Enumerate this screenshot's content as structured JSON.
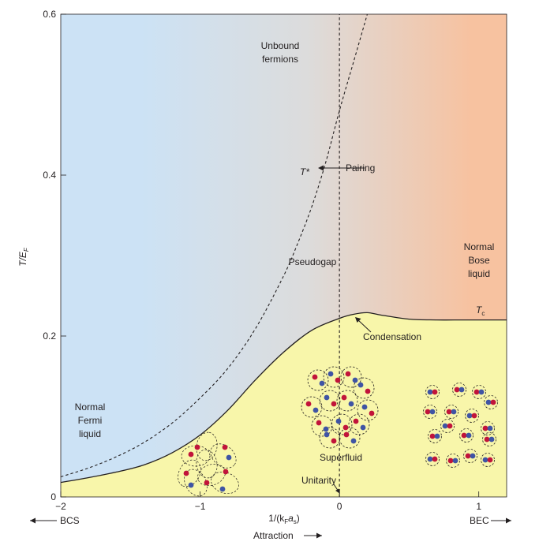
{
  "chart_data": {
    "type": "line",
    "title": "",
    "xlabel": "1/(k",
    "xlabel_sub1": "F",
    "xlabel_mid": "a",
    "xlabel_sub2": "s",
    "xlabel_end": ")",
    "ylabel": "T/E",
    "ylabel_sub": "F",
    "xlim": [
      -2,
      1.2
    ],
    "ylim": [
      0,
      0.6
    ],
    "x_ticks": [
      {
        "value": -2,
        "label": "−2"
      },
      {
        "value": -1,
        "label": "−1"
      },
      {
        "value": 0,
        "label": "0"
      },
      {
        "value": 1,
        "label": "1"
      }
    ],
    "y_ticks": [
      {
        "value": 0,
        "label": "0"
      },
      {
        "value": 0.2,
        "label": "0.2"
      },
      {
        "value": 0.4,
        "label": "0.4"
      },
      {
        "value": 0.6,
        "label": "0.6"
      }
    ],
    "grid": false,
    "series": [
      {
        "name": "T",
        "subscript": "c",
        "style": "solid",
        "x": [
          -2.0,
          -1.8,
          -1.6,
          -1.4,
          -1.2,
          -1.0,
          -0.8,
          -0.6,
          -0.4,
          -0.2,
          0.0,
          0.1,
          0.2,
          0.3,
          0.5,
          0.7,
          0.9,
          1.2
        ],
        "y": [
          0.018,
          0.024,
          0.031,
          0.04,
          0.055,
          0.077,
          0.108,
          0.146,
          0.18,
          0.207,
          0.222,
          0.227,
          0.229,
          0.226,
          0.221,
          0.22,
          0.22,
          0.22
        ]
      },
      {
        "name": "T*",
        "style": "dashed",
        "x": [
          -2.0,
          -1.8,
          -1.6,
          -1.4,
          -1.2,
          -1.0,
          -0.8,
          -0.6,
          -0.4,
          -0.3,
          -0.2,
          -0.1,
          0.0,
          0.1,
          0.2
        ],
        "y": [
          0.025,
          0.036,
          0.05,
          0.068,
          0.092,
          0.123,
          0.16,
          0.21,
          0.275,
          0.315,
          0.36,
          0.415,
          0.48,
          0.54,
          0.6
        ]
      },
      {
        "name": "Unitarity",
        "style": "dashed",
        "x": [
          0,
          0
        ],
        "y": [
          0,
          0.6
        ]
      }
    ],
    "annotations": [
      {
        "text": "Unbound",
        "x": -0.5,
        "y": 0.55
      },
      {
        "text": "fermions",
        "x": -0.43,
        "y": 0.535
      },
      {
        "text": "Pseudogap",
        "x": -0.2,
        "y": 0.285
      },
      {
        "text": "Normal",
        "x": 1.0,
        "y": 0.305
      },
      {
        "text": "Bose",
        "x": 1.0,
        "y": 0.288
      },
      {
        "text": "liquid",
        "x": 1.0,
        "y": 0.272
      },
      {
        "text": "Normal",
        "x": -1.82,
        "y": 0.108
      },
      {
        "text": "Fermi",
        "x": -1.82,
        "y": 0.092
      },
      {
        "text": "liquid",
        "x": -1.82,
        "y": 0.076
      },
      {
        "text": "Superfluid",
        "x": 0.0,
        "y": 0.045
      },
      {
        "text": "Pairing",
        "x": 0.15,
        "y": 0.41
      },
      {
        "text": "Condensation",
        "x": 0.37,
        "y": 0.195
      },
      {
        "text": "Unitarity",
        "x": -0.15,
        "y": 0.017
      }
    ],
    "bottom_labels": {
      "bcs": "BCS",
      "bec": "BEC",
      "attraction": "Attraction"
    },
    "colors": {
      "bcs_side": "#cce2f5",
      "middle": "#dcdcdc",
      "bec_side": "#f7c2a0",
      "superfluid": "#f8f6aa",
      "line": "#231f20",
      "red_particle": "#c1143a",
      "blue_particle": "#3f54a4"
    }
  }
}
